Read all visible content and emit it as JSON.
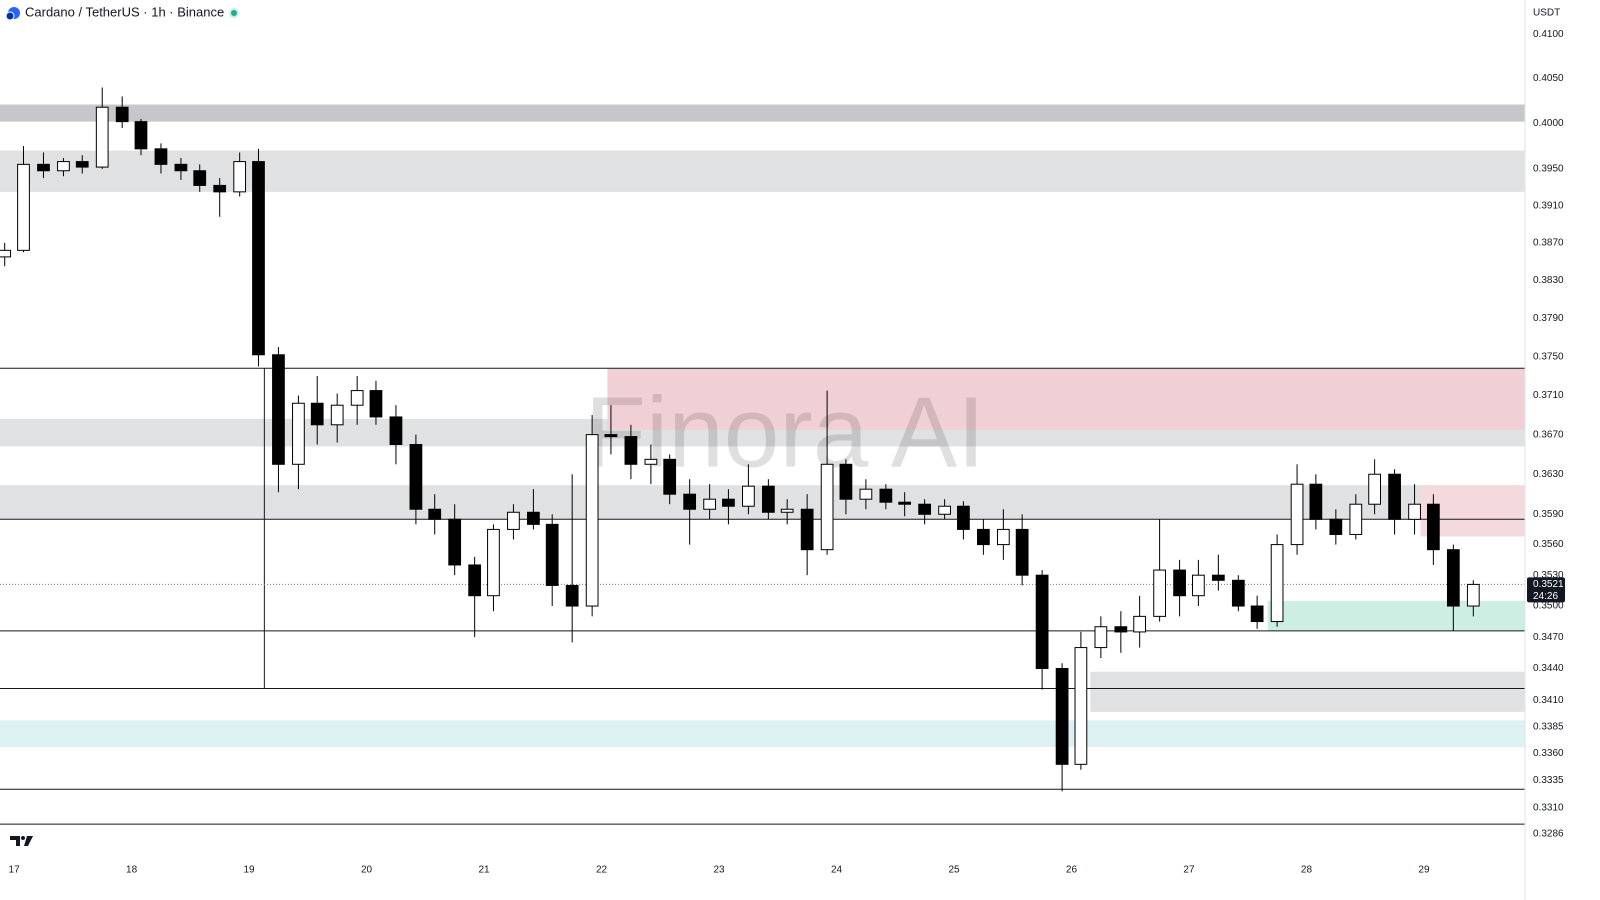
{
  "chart_data": {
    "type": "candlestick",
    "title": "Cardano / TetherUS · 1h · Binance",
    "currency": "USDT",
    "watermark": "Finora AI",
    "log": true,
    "grid": false,
    "up_color": "#ffffff",
    "down_color": "#000000",
    "xlim": [
      16.88,
      29.86
    ],
    "xticks": [
      17,
      18,
      19,
      20,
      21,
      22,
      23,
      24,
      25,
      26,
      27,
      28,
      29
    ],
    "ylim": [
      0.3267,
      0.4139
    ],
    "yticks": [
      {
        "value": 0.41,
        "label": "0.4100"
      },
      {
        "value": 0.405,
        "label": "0.4050"
      },
      {
        "value": 0.4,
        "label": "0.4000"
      },
      {
        "value": 0.395,
        "label": "0.3950"
      },
      {
        "value": 0.391,
        "label": "0.3910"
      },
      {
        "value": 0.387,
        "label": "0.3870"
      },
      {
        "value": 0.383,
        "label": "0.3830"
      },
      {
        "value": 0.379,
        "label": "0.3790"
      },
      {
        "value": 0.375,
        "label": "0.3750"
      },
      {
        "value": 0.371,
        "label": "0.3710"
      },
      {
        "value": 0.367,
        "label": "0.3670"
      },
      {
        "value": 0.363,
        "label": "0.3630"
      },
      {
        "value": 0.359,
        "label": "0.3590"
      },
      {
        "value": 0.356,
        "label": "0.3560"
      },
      {
        "value": 0.353,
        "label": "0.3530"
      },
      {
        "value": 0.35,
        "label": "0.3500"
      },
      {
        "value": 0.347,
        "label": "0.3470"
      },
      {
        "value": 0.344,
        "label": "0.3440"
      },
      {
        "value": 0.341,
        "label": "0.3410"
      },
      0.3385,
      {
        "value": 0.336,
        "label": "0.3360"
      },
      0.3335,
      {
        "value": 0.331,
        "label": "0.3310"
      },
      0.3286
    ],
    "x": [
      16.92,
      17.08,
      17.25,
      17.42,
      17.58,
      17.75,
      17.92,
      18.08,
      18.25,
      18.42,
      18.58,
      18.75,
      18.92,
      19.08,
      19.25,
      19.42,
      19.58,
      19.75,
      19.92,
      20.08,
      20.25,
      20.42,
      20.58,
      20.75,
      20.92,
      21.08,
      21.25,
      21.42,
      21.58,
      21.75,
      21.92,
      22.08,
      22.25,
      22.42,
      22.58,
      22.75,
      22.92,
      23.08,
      23.25,
      23.42,
      23.58,
      23.75,
      23.92,
      24.08,
      24.25,
      24.42,
      24.58,
      24.75,
      24.92,
      25.08,
      25.25,
      25.42,
      25.58,
      25.75,
      25.92,
      26.08,
      26.25,
      26.42,
      26.58,
      26.75,
      26.92,
      27.08,
      27.25,
      27.42,
      27.58,
      27.75,
      27.92,
      28.08,
      28.25,
      28.42,
      28.58,
      28.75,
      28.92,
      29.08,
      29.25,
      29.42
    ],
    "open": [
      0.3855,
      0.3862,
      0.3955,
      0.3948,
      0.3958,
      0.3952,
      0.4018,
      0.4002,
      0.3972,
      0.3955,
      0.3948,
      0.3932,
      0.3925,
      0.3958,
      0.3752,
      0.364,
      0.3702,
      0.368,
      0.37,
      0.3715,
      0.3688,
      0.366,
      0.3595,
      0.3585,
      0.354,
      0.351,
      0.3575,
      0.3592,
      0.358,
      0.352,
      0.35,
      0.367,
      0.3668,
      0.364,
      0.3645,
      0.361,
      0.3595,
      0.3605,
      0.3598,
      0.3618,
      0.3592,
      0.3595,
      0.3555,
      0.364,
      0.3605,
      0.3615,
      0.3602,
      0.36,
      0.359,
      0.3598,
      0.3575,
      0.356,
      0.3575,
      0.353,
      0.344,
      0.335,
      0.346,
      0.348,
      0.3475,
      0.349,
      0.3535,
      0.351,
      0.353,
      0.3525,
      0.35,
      0.3485,
      0.356,
      0.362,
      0.3585,
      0.357,
      0.36,
      0.363,
      0.3585,
      0.36,
      0.3555,
      0.35
    ],
    "high": [
      0.387,
      0.3975,
      0.3968,
      0.3962,
      0.3965,
      0.404,
      0.403,
      0.4005,
      0.3978,
      0.3962,
      0.3955,
      0.394,
      0.3968,
      0.3972,
      0.376,
      0.371,
      0.373,
      0.3712,
      0.373,
      0.3725,
      0.37,
      0.367,
      0.361,
      0.36,
      0.3548,
      0.358,
      0.36,
      0.3615,
      0.359,
      0.363,
      0.369,
      0.37,
      0.368,
      0.366,
      0.365,
      0.3625,
      0.362,
      0.3615,
      0.364,
      0.3625,
      0.3605,
      0.361,
      0.3715,
      0.3645,
      0.3625,
      0.362,
      0.3612,
      0.3605,
      0.3605,
      0.3603,
      0.3585,
      0.3595,
      0.359,
      0.3535,
      0.3445,
      0.3475,
      0.349,
      0.3495,
      0.351,
      0.3585,
      0.3545,
      0.3545,
      0.355,
      0.353,
      0.351,
      0.357,
      0.364,
      0.363,
      0.3595,
      0.361,
      0.3645,
      0.3635,
      0.362,
      0.361,
      0.356,
      0.3525
    ],
    "low": [
      0.3845,
      0.386,
      0.394,
      0.3942,
      0.3945,
      0.395,
      0.3995,
      0.3965,
      0.3945,
      0.3938,
      0.3925,
      0.3898,
      0.392,
      0.374,
      0.3612,
      0.3615,
      0.366,
      0.3662,
      0.368,
      0.368,
      0.364,
      0.358,
      0.357,
      0.353,
      0.347,
      0.3495,
      0.3565,
      0.3575,
      0.35,
      0.3465,
      0.349,
      0.365,
      0.3625,
      0.362,
      0.36,
      0.356,
      0.3585,
      0.358,
      0.359,
      0.3585,
      0.358,
      0.353,
      0.355,
      0.359,
      0.3595,
      0.3595,
      0.3588,
      0.358,
      0.3585,
      0.3565,
      0.355,
      0.3545,
      0.352,
      0.342,
      0.3325,
      0.3345,
      0.345,
      0.3455,
      0.346,
      0.3485,
      0.349,
      0.35,
      0.3515,
      0.3495,
      0.3478,
      0.348,
      0.355,
      0.3575,
      0.356,
      0.3565,
      0.359,
      0.357,
      0.357,
      0.354,
      0.3476,
      0.349
    ],
    "close": [
      0.3862,
      0.3955,
      0.3948,
      0.3958,
      0.3952,
      0.4018,
      0.4002,
      0.3972,
      0.3955,
      0.3948,
      0.3932,
      0.3925,
      0.3958,
      0.3752,
      0.364,
      0.3702,
      0.368,
      0.37,
      0.3715,
      0.3688,
      0.366,
      0.3595,
      0.3585,
      0.354,
      0.351,
      0.3575,
      0.3592,
      0.358,
      0.352,
      0.35,
      0.367,
      0.3668,
      0.364,
      0.3645,
      0.361,
      0.3595,
      0.3605,
      0.3598,
      0.3618,
      0.3592,
      0.3595,
      0.3555,
      0.364,
      0.3605,
      0.3615,
      0.3602,
      0.36,
      0.359,
      0.3598,
      0.3575,
      0.356,
      0.3575,
      0.353,
      0.344,
      0.335,
      0.346,
      0.348,
      0.3475,
      0.349,
      0.3535,
      0.351,
      0.353,
      0.3525,
      0.35,
      0.3485,
      0.356,
      0.362,
      0.3585,
      0.357,
      0.36,
      0.363,
      0.3585,
      0.36,
      0.3555,
      0.35,
      0.3521
    ],
    "last_price": {
      "value": 0.3521,
      "label": "0.3521",
      "countdown": "24:26"
    },
    "zones": [
      {
        "x": [
          16.88,
          29.86
        ],
        "y": [
          0.4002,
          0.4021
        ],
        "color": "#c6c7ca"
      },
      {
        "x": [
          16.88,
          29.86
        ],
        "y": [
          0.3925,
          0.397
        ],
        "color": "#e0e1e3"
      },
      {
        "x": [
          16.88,
          29.86
        ],
        "y": [
          0.3658,
          0.3686
        ],
        "color": "#e0e1e3"
      },
      {
        "x": [
          16.88,
          29.86
        ],
        "y": [
          0.3585,
          0.3619
        ],
        "color": "#e0e1e3"
      },
      {
        "x": [
          22.05,
          29.86
        ],
        "y": [
          0.3675,
          0.3738
        ],
        "color": "#f0d0d5"
      },
      {
        "x": [
          28.97,
          29.86
        ],
        "y": [
          0.3568,
          0.3619
        ],
        "color": "#f5dadd"
      },
      {
        "x": [
          27.67,
          29.86
        ],
        "y": [
          0.3476,
          0.3505
        ],
        "color": "#cdeee3"
      },
      {
        "x": [
          26.16,
          29.86
        ],
        "y": [
          0.3399,
          0.3437
        ],
        "color": "#e0e1e3"
      },
      {
        "x": [
          16.88,
          29.86
        ],
        "y": [
          0.3366,
          0.3391
        ],
        "color": "#ddf0f2"
      }
    ],
    "hlines": [
      0.3738,
      0.3585,
      0.3476,
      0.3421,
      0.3327,
      0.3295
    ],
    "vline": {
      "x": 19.13,
      "y": [
        0.3421,
        0.3738
      ]
    }
  }
}
